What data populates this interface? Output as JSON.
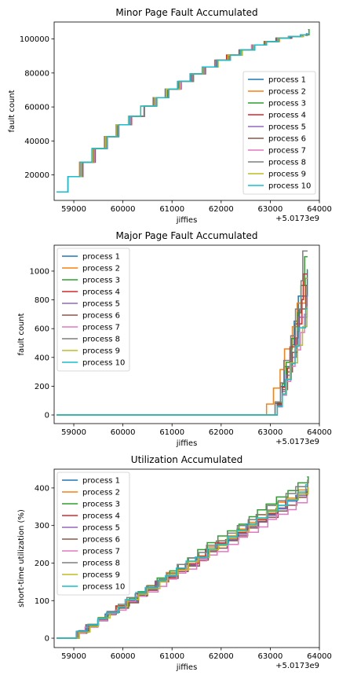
{
  "chart_data": [
    {
      "type": "line",
      "title": "Minor Page Fault Accumulated",
      "xlabel": "jiffies",
      "ylabel": "fault count",
      "x_offset_label": "+5.0173e9",
      "xlim": [
        58600,
        64000
      ],
      "ylim": [
        5000,
        110000
      ],
      "xticks": [
        59000,
        60000,
        61000,
        62000,
        63000,
        64000
      ],
      "yticks": [
        20000,
        40000,
        60000,
        80000,
        100000
      ],
      "legend_position": "lower-right",
      "series": [
        {
          "name": "process 1",
          "color": "#1f77b4"
        },
        {
          "name": "process 2",
          "color": "#ff7f0e"
        },
        {
          "name": "process 3",
          "color": "#2ca02c"
        },
        {
          "name": "process 4",
          "color": "#d62728"
        },
        {
          "name": "process 5",
          "color": "#9467bd"
        },
        {
          "name": "process 6",
          "color": "#8c564b"
        },
        {
          "name": "process 7",
          "color": "#e377c2"
        },
        {
          "name": "process 8",
          "color": "#7f7f7f"
        },
        {
          "name": "process 9",
          "color": "#bcbd22"
        },
        {
          "name": "process 10",
          "color": "#17becf"
        }
      ],
      "common_steps": {
        "x": [
          58650,
          58900,
          59150,
          59400,
          59650,
          59900,
          60150,
          60400,
          60650,
          60900,
          61150,
          61400,
          61650,
          61900,
          62150,
          62400,
          62650,
          62900,
          63150,
          63400,
          63650,
          63750
        ],
        "y": [
          10000,
          19000,
          27500,
          35500,
          42500,
          49500,
          54500,
          60500,
          65500,
          70500,
          75000,
          79500,
          83500,
          87500,
          90500,
          93500,
          96500,
          98500,
          100500,
          101500,
          102500,
          103000
        ]
      },
      "series_final_y": [
        103000,
        102000,
        105500,
        102500,
        102500,
        102500,
        102500,
        102500,
        102500,
        102500
      ]
    },
    {
      "type": "line",
      "title": "Major Page Fault Accumulated",
      "xlabel": "jiffies",
      "ylabel": "fault count",
      "x_offset_label": "+5.0173e9",
      "xlim": [
        58600,
        64000
      ],
      "ylim": [
        -60,
        1180
      ],
      "xticks": [
        59000,
        60000,
        61000,
        62000,
        63000,
        64000
      ],
      "yticks": [
        0,
        200,
        400,
        600,
        800,
        1000
      ],
      "legend_position": "upper-left",
      "series": [
        {
          "name": "process 1",
          "color": "#1f77b4"
        },
        {
          "name": "process 2",
          "color": "#ff7f0e"
        },
        {
          "name": "process 3",
          "color": "#2ca02c"
        },
        {
          "name": "process 4",
          "color": "#d62728"
        },
        {
          "name": "process 5",
          "color": "#9467bd"
        },
        {
          "name": "process 6",
          "color": "#8c564b"
        },
        {
          "name": "process 7",
          "color": "#e377c2"
        },
        {
          "name": "process 8",
          "color": "#7f7f7f"
        },
        {
          "name": "process 9",
          "color": "#bcbd22"
        },
        {
          "name": "process 10",
          "color": "#17becf"
        }
      ],
      "flat_start_x": 58650,
      "ramp_start_x": [
        63000,
        62800,
        63050,
        63050,
        63050,
        63050,
        63050,
        63000,
        63050,
        63050
      ],
      "final_y": [
        1010,
        950,
        1100,
        980,
        830,
        900,
        700,
        1140,
        750,
        740
      ]
    },
    {
      "type": "line",
      "title": "Utilization Accumulated",
      "xlabel": "jiffies",
      "ylabel": "short-time utilization (%)",
      "x_offset_label": "+5.0173e9",
      "xlim": [
        58600,
        64000
      ],
      "ylim": [
        -25,
        450
      ],
      "xticks": [
        59000,
        60000,
        61000,
        62000,
        63000,
        64000
      ],
      "yticks": [
        0,
        100,
        200,
        300,
        400
      ],
      "legend_position": "upper-left",
      "series": [
        {
          "name": "process 1",
          "color": "#1f77b4"
        },
        {
          "name": "process 2",
          "color": "#ff7f0e"
        },
        {
          "name": "process 3",
          "color": "#2ca02c"
        },
        {
          "name": "process 4",
          "color": "#d62728"
        },
        {
          "name": "process 5",
          "color": "#9467bd"
        },
        {
          "name": "process 6",
          "color": "#8c564b"
        },
        {
          "name": "process 7",
          "color": "#e377c2"
        },
        {
          "name": "process 8",
          "color": "#7f7f7f"
        },
        {
          "name": "process 9",
          "color": "#bcbd22"
        },
        {
          "name": "process 10",
          "color": "#17becf"
        }
      ],
      "start_x": 58650,
      "end_x": 63750,
      "final_y": [
        395,
        410,
        430,
        400,
        395,
        390,
        375,
        420,
        400,
        405
      ]
    }
  ]
}
